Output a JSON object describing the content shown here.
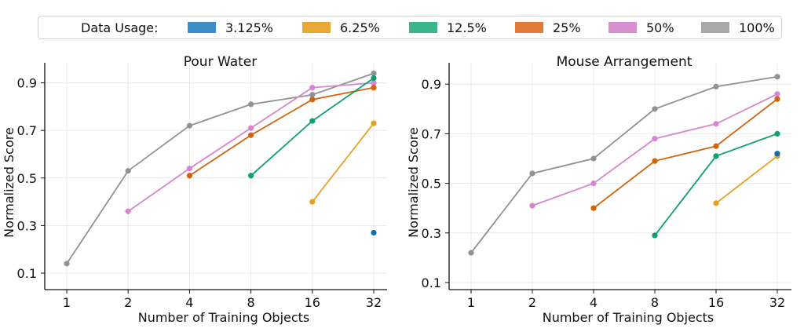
{
  "legend": {
    "title": "Data Usage:",
    "items": [
      {
        "label": "3.125%",
        "color": "#3a8ec4"
      },
      {
        "label": "6.25%",
        "color": "#e8a838"
      },
      {
        "label": "12.5%",
        "color": "#3bb58a"
      },
      {
        "label": "25%",
        "color": "#e07b39"
      },
      {
        "label": "50%",
        "color": "#d88fd0"
      },
      {
        "label": "100%",
        "color": "#a8a8a8"
      }
    ]
  },
  "chart_data": [
    {
      "type": "line",
      "title": "Pour Water",
      "xlabel": "Number of Training Objects",
      "ylabel": "Normalized Score",
      "categories": [
        "1",
        "2",
        "4",
        "8",
        "16",
        "32"
      ],
      "ylim": [
        0.07,
        0.97
      ],
      "yticks": [
        "0.1",
        "0.3",
        "0.5",
        "0.7",
        "0.9"
      ],
      "grid": true,
      "series": [
        {
          "name": "100%",
          "color": "#929292",
          "values": [
            0.14,
            0.53,
            0.72,
            0.81,
            0.85,
            0.94
          ]
        },
        {
          "name": "50%",
          "color": "#d586cf",
          "values": [
            null,
            0.36,
            0.54,
            0.71,
            0.88,
            0.9
          ]
        },
        {
          "name": "25%",
          "color": "#d0640d",
          "values": [
            null,
            null,
            0.51,
            0.68,
            0.83,
            0.88
          ]
        },
        {
          "name": "12.5%",
          "color": "#0f9e75",
          "values": [
            null,
            null,
            null,
            0.51,
            0.74,
            0.92
          ]
        },
        {
          "name": "6.25%",
          "color": "#e6a023",
          "values": [
            null,
            null,
            null,
            null,
            0.4,
            0.73
          ]
        },
        {
          "name": "3.125%",
          "color": "#0a70b2",
          "values": [
            null,
            null,
            null,
            null,
            null,
            0.27
          ]
        }
      ]
    },
    {
      "type": "line",
      "title": "Mouse Arrangement",
      "xlabel": "Number of Training Objects",
      "ylabel": "Normalized Score",
      "categories": [
        "1",
        "2",
        "4",
        "8",
        "16",
        "32"
      ],
      "ylim": [
        0.07,
        0.97
      ],
      "yticks": [
        "0.1",
        "0.3",
        "0.5",
        "0.7",
        "0.9"
      ],
      "grid": true,
      "series": [
        {
          "name": "100%",
          "color": "#929292",
          "values": [
            0.22,
            0.54,
            0.6,
            0.8,
            0.89,
            0.93
          ]
        },
        {
          "name": "50%",
          "color": "#d586cf",
          "values": [
            null,
            0.41,
            0.5,
            0.68,
            0.74,
            0.86
          ]
        },
        {
          "name": "25%",
          "color": "#d0640d",
          "values": [
            null,
            null,
            0.4,
            0.59,
            0.65,
            0.84
          ]
        },
        {
          "name": "12.5%",
          "color": "#0f9e75",
          "values": [
            null,
            null,
            null,
            0.29,
            0.61,
            0.7
          ]
        },
        {
          "name": "6.25%",
          "color": "#e6a023",
          "values": [
            null,
            null,
            null,
            null,
            0.42,
            0.61
          ]
        },
        {
          "name": "3.125%",
          "color": "#0a70b2",
          "values": [
            null,
            null,
            null,
            null,
            null,
            0.62
          ]
        }
      ]
    }
  ]
}
